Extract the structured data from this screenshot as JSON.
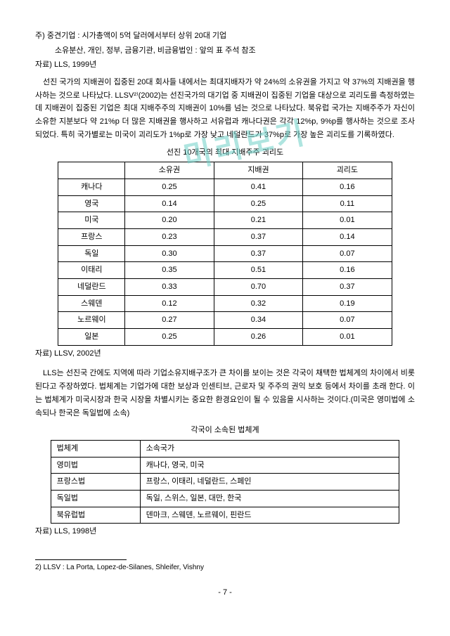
{
  "watermark": "미리보기",
  "notes": {
    "line1": "주) 중견기업 : 시가총액이 5억 달러에서부터 상위 20대 기업",
    "line2": "소유분산, 개인, 정부, 금융기관, 비금융법인 : 앞의 표 주석 참조",
    "line3": "자료) LLS, 1999년"
  },
  "para1": "선진 국가의 지배권이 집중된 20대 회사들 내에서는 최대지배자가 약 24%의 소유권을 가지고 약 37%의 지배권을 행사하는 것으로 나타났다. LLSV²⁾(2002)는 선진국가의 대기업 중 지배권이 집중된 기업을 대상으로 괴리도를 측정하였는데 지배권이 집중된 기업은 최대 지배주주의 지배권이 10%를 넘는 것으로 나타났다. 북유럽 국가는 지배주주가 자신이 소유한 지분보다 약 21%p 더 많은 지배권을 행사하고 서유럽과 캐나다권은 각각 12%p, 9%p를 행사하는 것으로 조사되었다. 특히 국가별로는 미국이 괴리도가 1%p로 가장 낮고 네덜란드가 37%p로 가장 높은 괴리도를 기록하였다.",
  "table1": {
    "caption": "선진 10개국의 최대 지배주주 괴리도",
    "headers": [
      "",
      "소유권",
      "지배권",
      "괴리도"
    ],
    "groups": [
      [
        {
          "c": "캐나다",
          "v": [
            "0.25",
            "0.41",
            "0.16"
          ]
        },
        {
          "c": "영국",
          "v": [
            "0.14",
            "0.25",
            "0.11"
          ]
        },
        {
          "c": "미국",
          "v": [
            "0.20",
            "0.21",
            "0.01"
          ]
        }
      ],
      [
        {
          "c": "프랑스",
          "v": [
            "0.23",
            "0.37",
            "0.14"
          ]
        },
        {
          "c": "독일",
          "v": [
            "0.30",
            "0.37",
            "0.07"
          ]
        },
        {
          "c": "이태리",
          "v": [
            "0.35",
            "0.51",
            "0.16"
          ]
        }
      ],
      [
        {
          "c": "네덜란드",
          "v": [
            "0.33",
            "0.70",
            "0.37"
          ]
        },
        {
          "c": "스웨덴",
          "v": [
            "0.12",
            "0.32",
            "0.19"
          ]
        },
        {
          "c": "노르웨이",
          "v": [
            "0.27",
            "0.34",
            "0.07"
          ]
        }
      ],
      [
        {
          "c": "일본",
          "v": [
            "0.25",
            "0.26",
            "0.01"
          ]
        }
      ]
    ],
    "source": "자료) LLSV, 2002년"
  },
  "para2": "LLS는 선진국 간에도 지역에 따라 기업소유지배구조가 큰 차이를 보이는 것은 각국이 채택한 법체계의 차이에서 비롯된다고 주장하였다. 법체계는 기업가에 대한 보상과 인센티브, 근로자 및 주주의 권익 보호 등에서 차이를 초래 한다. 이는 법체계가 미국시장과 한국 시장을 차별시키는 중요한 환경요인이 될 수 있음을 시사하는 것이다.(미국은 영미법에 소속되나 한국은 독일법에 소속)",
  "table2": {
    "caption": "각국이 소속된 법체계",
    "rows": [
      [
        "법체계",
        "소속국가"
      ],
      [
        "영미법",
        "캐나다, 영국, 미국"
      ],
      [
        "프랑스법",
        "프랑스, 이태리, 네덜란드, 스페인"
      ],
      [
        "독일법",
        "독일, 스위스, 일본, 대만, 한국"
      ],
      [
        "북유럽법",
        "덴마크, 스웨덴, 노르웨이, 핀란드"
      ]
    ],
    "source": "자료) LLS, 1998년"
  },
  "footnote": "2) LLSV : La Porta, Lopez-de-Silanes, Shleifer, Vishny",
  "pagenum": "- 7 -"
}
